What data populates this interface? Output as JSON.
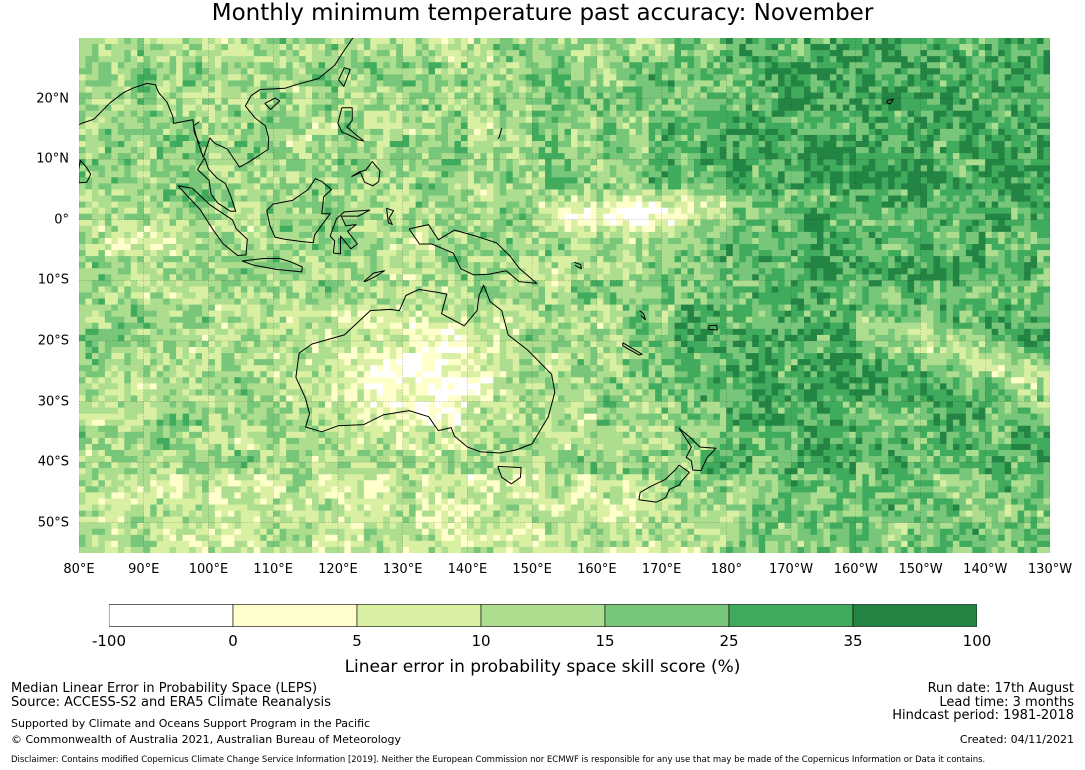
{
  "title": "Monthly minimum temperature past accuracy: November",
  "map": {
    "projection": "equirectangular",
    "lon_range": [
      80,
      230
    ],
    "lat_range": [
      -55,
      30
    ],
    "lat_ticks": [
      {
        "value": 20,
        "label": "20°N"
      },
      {
        "value": 10,
        "label": "10°N"
      },
      {
        "value": 0,
        "label": "0°"
      },
      {
        "value": -10,
        "label": "10°S"
      },
      {
        "value": -20,
        "label": "20°S"
      },
      {
        "value": -30,
        "label": "30°S"
      },
      {
        "value": -40,
        "label": "40°S"
      },
      {
        "value": -50,
        "label": "50°S"
      }
    ],
    "lon_ticks": [
      {
        "value": 80,
        "label": "80°E"
      },
      {
        "value": 90,
        "label": "90°E"
      },
      {
        "value": 100,
        "label": "100°E"
      },
      {
        "value": 110,
        "label": "110°E"
      },
      {
        "value": 120,
        "label": "120°E"
      },
      {
        "value": 130,
        "label": "130°E"
      },
      {
        "value": 140,
        "label": "140°E"
      },
      {
        "value": 150,
        "label": "150°E"
      },
      {
        "value": 160,
        "label": "160°E"
      },
      {
        "value": 170,
        "label": "170°E"
      },
      {
        "value": 180,
        "label": "180°"
      },
      {
        "value": 190,
        "label": "170°W"
      },
      {
        "value": 200,
        "label": "160°W"
      },
      {
        "value": 210,
        "label": "150°W"
      },
      {
        "value": 220,
        "label": "140°W"
      },
      {
        "value": 230,
        "label": "130°W"
      }
    ],
    "gridlines": true,
    "coastlines": true
  },
  "colorbar": {
    "label": "Linear error in probability space skill score (%)",
    "bins": [
      {
        "from": -100,
        "to": 0,
        "color": "#ffffff"
      },
      {
        "from": 0,
        "to": 5,
        "color": "#ffffcc"
      },
      {
        "from": 5,
        "to": 10,
        "color": "#d9f0a3"
      },
      {
        "from": 10,
        "to": 15,
        "color": "#addd8e"
      },
      {
        "from": 15,
        "to": 25,
        "color": "#78c679"
      },
      {
        "from": 25,
        "to": 35,
        "color": "#41ab5d"
      },
      {
        "from": 35,
        "to": 100,
        "color": "#238443"
      }
    ],
    "tick_labels": [
      "-100",
      "0",
      "5",
      "10",
      "15",
      "25",
      "35",
      "100"
    ]
  },
  "footer": {
    "left_line1": "Median Linear Error in Probability Space (LEPS)",
    "left_line2": "Source: ACCESS-S2 and ERA5 Climate Reanalysis",
    "left_line3": "Supported by Climate and Oceans Support Program in the Pacific",
    "left_line4": "© Commonwealth of Australia 2021, Australian Bureau of Meteorology",
    "right_line1": "Run date: 17th August",
    "right_line2": "Lead time: 3 months",
    "right_line3": "Hindcast period: 1981-2018",
    "right_line4": "Created: 04/11/2021",
    "disclaimer": "Disclaimer: Contains modified Copernicus Climate Change Service Information [2019]. Neither the European Commission nor ECMWF is responsible for any use that may be made of the Copernicus Information or Data it contains."
  }
}
